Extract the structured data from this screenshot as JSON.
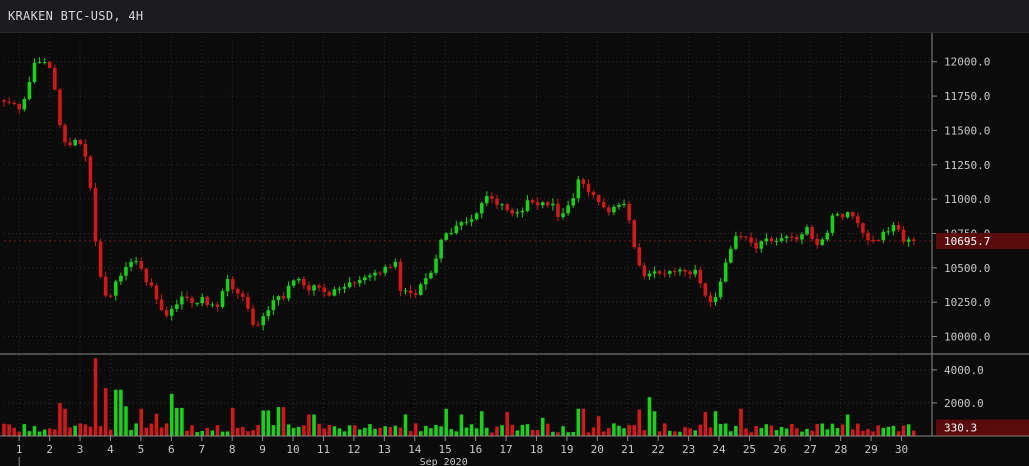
{
  "window": {
    "title": "KRAKEN BTC-USD, 4H"
  },
  "colors": {
    "up": "#19d119",
    "down": "#d11919",
    "background": "#0b0b0b",
    "grid": "#2c2c2c",
    "axis_text": "#c8c8c8",
    "last_price_bg": "#5a0c0c"
  },
  "chart_data": [
    {
      "type": "candlestick",
      "title": "KRAKEN BTC-USD, 4H",
      "ylim": [
        9880,
        12180
      ],
      "y_ticks": [
        "10000.0",
        "10250.0",
        "10500.0",
        "10750.0",
        "11000.0",
        "11250.0",
        "11500.0",
        "11750.0",
        "12000.0"
      ],
      "y_tick_values": [
        10000,
        10250,
        10500,
        10750,
        11000,
        11250,
        11500,
        11750,
        12000
      ],
      "last_price": 10695.7,
      "last_price_label": "10695.7",
      "grid": true,
      "x_range": [
        0.5,
        31.0
      ],
      "x_ticks": [
        "1",
        "2",
        "3",
        "4",
        "5",
        "6",
        "7",
        "8",
        "9",
        "10",
        "11",
        "12",
        "13",
        "14",
        "15",
        "16",
        "17",
        "18",
        "19",
        "20",
        "21",
        "22",
        "23",
        "24",
        "25",
        "26",
        "27",
        "28",
        "29",
        "30"
      ],
      "x_tick_values": [
        1,
        2,
        3,
        4,
        5,
        6,
        7,
        8,
        9,
        10,
        11,
        12,
        13,
        14,
        15,
        16,
        17,
        18,
        19,
        20,
        21,
        22,
        23,
        24,
        25,
        26,
        27,
        28,
        29,
        30
      ],
      "x_period_label": "Sep 2020",
      "anchors": [
        [
          0.5,
          11720
        ],
        [
          0.9,
          11680
        ],
        [
          1.15,
          11640
        ],
        [
          1.4,
          11850
        ],
        [
          1.6,
          12000
        ],
        [
          1.9,
          12000
        ],
        [
          2.15,
          11920
        ],
        [
          2.3,
          11760
        ],
        [
          2.45,
          11480
        ],
        [
          2.7,
          11380
        ],
        [
          2.9,
          11420
        ],
        [
          3.1,
          11420
        ],
        [
          3.35,
          11240
        ],
        [
          3.45,
          11000
        ],
        [
          3.55,
          10720
        ],
        [
          3.8,
          10400
        ],
        [
          4.0,
          10250
        ],
        [
          4.2,
          10380
        ],
        [
          4.4,
          10420
        ],
        [
          4.7,
          10560
        ],
        [
          4.95,
          10560
        ],
        [
          5.2,
          10440
        ],
        [
          5.45,
          10340
        ],
        [
          5.7,
          10250
        ],
        [
          5.9,
          10120
        ],
        [
          6.1,
          10200
        ],
        [
          6.35,
          10260
        ],
        [
          6.55,
          10280
        ],
        [
          6.8,
          10230
        ],
        [
          7.05,
          10300
        ],
        [
          7.3,
          10220
        ],
        [
          7.6,
          10220
        ],
        [
          7.8,
          10360
        ],
        [
          7.95,
          10400
        ],
        [
          8.2,
          10350
        ],
        [
          8.5,
          10250
        ],
        [
          8.8,
          10080
        ],
        [
          9.0,
          10120
        ],
        [
          9.2,
          10160
        ],
        [
          9.5,
          10270
        ],
        [
          9.8,
          10300
        ],
        [
          10.0,
          10380
        ],
        [
          10.3,
          10420
        ],
        [
          10.55,
          10320
        ],
        [
          10.8,
          10400
        ],
        [
          11.1,
          10300
        ],
        [
          11.4,
          10340
        ],
        [
          11.7,
          10360
        ],
        [
          12.0,
          10390
        ],
        [
          12.3,
          10400
        ],
        [
          12.6,
          10420
        ],
        [
          12.9,
          10460
        ],
        [
          13.2,
          10520
        ],
        [
          13.45,
          10550
        ],
        [
          13.6,
          10330
        ],
        [
          13.9,
          10300
        ],
        [
          14.1,
          10310
        ],
        [
          14.35,
          10400
        ],
        [
          14.6,
          10480
        ],
        [
          14.85,
          10620
        ],
        [
          15.0,
          10720
        ],
        [
          15.3,
          10760
        ],
        [
          15.5,
          10840
        ],
        [
          15.75,
          10820
        ],
        [
          16.0,
          10880
        ],
        [
          16.3,
          10980
        ],
        [
          16.55,
          11020
        ],
        [
          16.8,
          10960
        ],
        [
          17.05,
          10960
        ],
        [
          17.3,
          10880
        ],
        [
          17.6,
          10920
        ],
        [
          17.8,
          10980
        ],
        [
          18.0,
          10960
        ],
        [
          18.3,
          10980
        ],
        [
          18.6,
          10960
        ],
        [
          18.8,
          10880
        ],
        [
          19.1,
          10940
        ],
        [
          19.3,
          11020
        ],
        [
          19.45,
          11140
        ],
        [
          19.6,
          11100
        ],
        [
          19.8,
          11060
        ],
        [
          20.0,
          11000
        ],
        [
          20.3,
          10960
        ],
        [
          20.5,
          10900
        ],
        [
          20.7,
          10980
        ],
        [
          20.9,
          10980
        ],
        [
          21.05,
          10920
        ],
        [
          21.2,
          10780
        ],
        [
          21.35,
          10600
        ],
        [
          21.55,
          10450
        ],
        [
          21.75,
          10440
        ],
        [
          22.0,
          10470
        ],
        [
          22.2,
          10460
        ],
        [
          22.5,
          10490
        ],
        [
          22.75,
          10500
        ],
        [
          23.0,
          10480
        ],
        [
          23.3,
          10470
        ],
        [
          23.5,
          10400
        ],
        [
          23.7,
          10220
        ],
        [
          23.9,
          10260
        ],
        [
          24.1,
          10370
        ],
        [
          24.3,
          10520
        ],
        [
          24.5,
          10680
        ],
        [
          24.7,
          10760
        ],
        [
          24.9,
          10720
        ],
        [
          25.1,
          10680
        ],
        [
          25.3,
          10650
        ],
        [
          25.5,
          10700
        ],
        [
          25.8,
          10690
        ],
        [
          26.1,
          10720
        ],
        [
          26.4,
          10740
        ],
        [
          26.7,
          10720
        ],
        [
          27.0,
          10780
        ],
        [
          27.2,
          10660
        ],
        [
          27.4,
          10640
        ],
        [
          27.65,
          10780
        ],
        [
          27.85,
          10880
        ],
        [
          28.05,
          10880
        ],
        [
          28.3,
          10900
        ],
        [
          28.5,
          10860
        ],
        [
          28.7,
          10800
        ],
        [
          28.9,
          10720
        ],
        [
          29.1,
          10700
        ],
        [
          29.3,
          10720
        ],
        [
          29.5,
          10740
        ],
        [
          29.75,
          10820
        ],
        [
          29.95,
          10800
        ],
        [
          30.15,
          10700
        ],
        [
          30.4,
          10696
        ]
      ],
      "volume": {
        "ylim": [
          0,
          4900
        ],
        "y_ticks": [
          "2000.0",
          "4000.0"
        ],
        "y_tick_values": [
          2000,
          4000
        ],
        "last_value_label": "330.3",
        "base_level": 350,
        "spikes": [
          [
            2.3,
            2000
          ],
          [
            2.45,
            1650
          ],
          [
            3.5,
            4700
          ],
          [
            3.8,
            2900
          ],
          [
            4.25,
            2800
          ],
          [
            4.55,
            1800
          ],
          [
            5.05,
            1650
          ],
          [
            5.55,
            1350
          ],
          [
            6.1,
            2550
          ],
          [
            6.25,
            1700
          ],
          [
            8.0,
            1700
          ],
          [
            9.1,
            1550
          ],
          [
            9.6,
            1750
          ],
          [
            10.6,
            1300
          ],
          [
            13.7,
            1300
          ],
          [
            15.0,
            1650
          ],
          [
            15.6,
            1300
          ],
          [
            16.15,
            1500
          ],
          [
            17.0,
            1450
          ],
          [
            18.2,
            1100
          ],
          [
            19.45,
            1650
          ],
          [
            20.1,
            1200
          ],
          [
            21.4,
            1600
          ],
          [
            21.65,
            2350
          ],
          [
            21.85,
            1500
          ],
          [
            23.6,
            1450
          ],
          [
            23.85,
            1500
          ],
          [
            24.75,
            1650
          ],
          [
            28.2,
            1300
          ]
        ]
      }
    }
  ]
}
